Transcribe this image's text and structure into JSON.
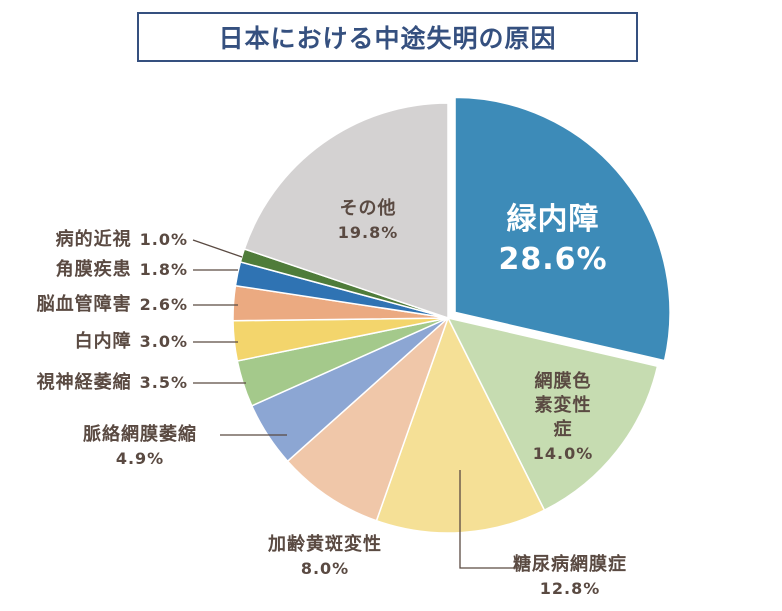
{
  "chart_data": {
    "type": "pie",
    "title": "日本における中途失明の原因",
    "categories": [
      "緑内障",
      "網膜色素変性症",
      "糖尿病網膜症",
      "加齢黄斑変性",
      "脈絡網膜萎縮",
      "視神経萎縮",
      "白内障",
      "脳血管障害",
      "角膜疾患",
      "病的近視",
      "その他"
    ],
    "values": [
      28.6,
      14.0,
      12.8,
      8.0,
      4.9,
      3.5,
      3.0,
      2.6,
      1.8,
      1.0,
      19.8
    ],
    "value_labels": [
      "28.6%",
      "14.0%",
      "12.8%",
      "8.0%",
      "4.9%",
      "3.5%",
      "3.0%",
      "2.6%",
      "1.8%",
      "1.0%",
      "19.8%"
    ],
    "colors": [
      "#3d8bb8",
      "#c6dcb1",
      "#f5e096",
      "#f0c7a9",
      "#8ca6d3",
      "#a4c98b",
      "#f3d56c",
      "#ebaa81",
      "#2f73b3",
      "#4f7c3a",
      "#d4d2d2"
    ]
  }
}
